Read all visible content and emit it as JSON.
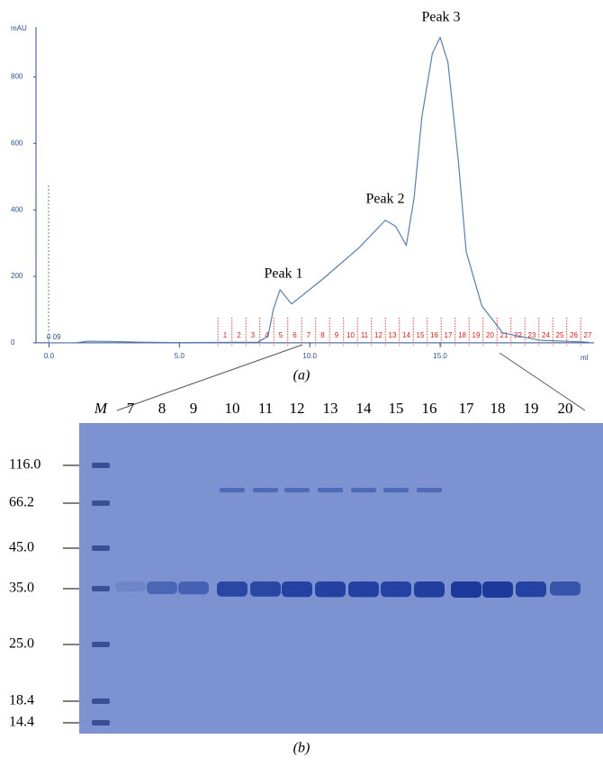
{
  "chart_data": {
    "type": "line",
    "y_unit_label": "mAU",
    "x_unit_label": "ml",
    "caption": "(a)",
    "annotations": [
      "Peak 1",
      "Peak 2",
      "Peak 3"
    ],
    "start_label": "0 09",
    "color": "#5a7fa8",
    "xlim": [
      -0.5,
      20.9
    ],
    "ylim": [
      -30,
      950
    ],
    "xticks": [
      {
        "value": 0,
        "label": "0.0"
      },
      {
        "value": 5,
        "label": "5.0"
      },
      {
        "value": 10,
        "label": "10.0"
      },
      {
        "value": 15,
        "label": "15.0"
      }
    ],
    "yticks": [
      0,
      200,
      400,
      600,
      800
    ],
    "x": [
      0,
      1.0,
      1.5,
      2.5,
      3.5,
      5.0,
      8.0,
      8.4,
      8.6,
      8.86,
      9.3,
      10.5,
      11.9,
      12.9,
      13.3,
      13.7,
      14.0,
      14.3,
      14.7,
      15.0,
      15.3,
      15.7,
      16.0,
      16.6,
      17.4,
      18.8,
      20.7
    ],
    "values": [
      0,
      0,
      5,
      4,
      2,
      1,
      2,
      20,
      100,
      160,
      117,
      192,
      287,
      369,
      350,
      293,
      436,
      680,
      870,
      919,
      843,
      545,
      274,
      111,
      30,
      8,
      2
    ],
    "fractions": {
      "labels": [
        "1",
        "2",
        "3",
        "4",
        "5",
        "6",
        "7",
        "8",
        "9",
        "10",
        "11",
        "12",
        "13",
        "14",
        "15",
        "16",
        "17",
        "18",
        "19",
        "20",
        "21",
        "22",
        "23",
        "24",
        "25",
        "26",
        "27"
      ],
      "start": 6.48,
      "width": 0.535
    }
  },
  "gel": {
    "caption": "(b)",
    "lanes": [
      "M",
      "7",
      "8",
      "9",
      "10",
      "11",
      "12",
      "13",
      "14",
      "15",
      "16",
      "17",
      "18",
      "19",
      "20"
    ],
    "markers": [
      "116.0",
      "66.2",
      "45.0",
      "35.0",
      "25.0",
      "18.4",
      "14.4"
    ]
  }
}
